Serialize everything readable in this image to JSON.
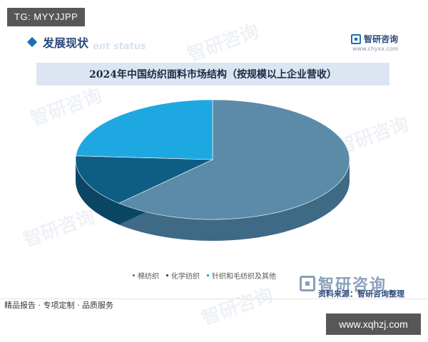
{
  "overlay_tag": "TG: MYYJJPP",
  "section": {
    "title": "发展现状",
    "ghost_text": "ent status"
  },
  "brand": {
    "name": "智研咨询",
    "url": "www.chyxx.com"
  },
  "watermark_text": "智研咨询",
  "source": {
    "logo_text": "智研咨询",
    "text": "资料来源：智研咨询整理"
  },
  "footer": {
    "slogan": "精品报告 · 专项定制 · 品质服务"
  },
  "overlay_url": "www.xqhzj.com",
  "colors": {
    "accent": "#1f6fb2",
    "title_bar": "#dbe6f2"
  },
  "chart_data": {
    "type": "pie",
    "title": "2024年中国纺织面料市场结构（按规模以上企业营收）",
    "series": [
      {
        "name": "棉纺织",
        "value": 62,
        "color": "#5b8ba8",
        "side": "#3f6a86"
      },
      {
        "name": "化学纺织",
        "value": 14,
        "color": "#0e5e84",
        "side": "#0a4663"
      },
      {
        "name": "针织和毛纺织及其他",
        "value": 24,
        "color": "#1ea8e2",
        "side": "#137fb0"
      }
    ],
    "legend_position": "bottom"
  }
}
